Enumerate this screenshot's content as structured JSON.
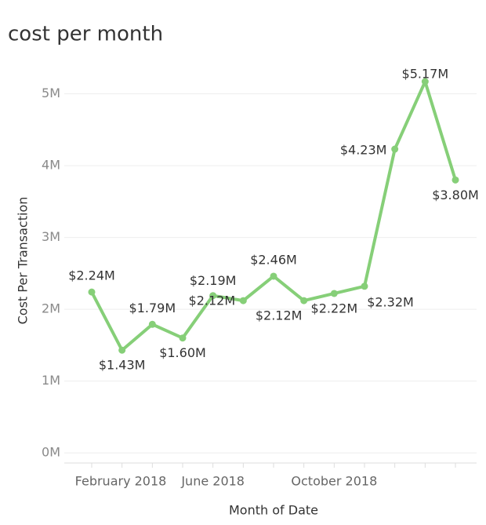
{
  "chart_data": {
    "type": "line",
    "title": "cost per month",
    "x_label": "Month of Date",
    "y_label": "Cost Per Transaction",
    "categories": [
      "February 2018",
      null,
      null,
      null,
      "June 2018",
      null,
      null,
      null,
      "October 2018",
      null,
      null,
      null,
      null
    ],
    "series": [
      {
        "name": "Cost Per Transaction",
        "color": "#86cf78",
        "values": [
          2240000,
          1430000,
          1790000,
          1600000,
          2190000,
          2120000,
          2460000,
          2120000,
          2220000,
          2320000,
          4230000,
          5170000,
          3800000
        ],
        "value_labels": [
          "$2.24M",
          "$1.43M",
          "$1.79M",
          "$1.60M",
          "$2.19M",
          "$2.12M",
          "$2.46M",
          "$2.12M",
          "$2.22M",
          "$2.32M",
          "$4.23M",
          "$5.17M",
          "$3.80M"
        ]
      }
    ],
    "ylim": [
      -130000,
      5170000
    ],
    "yticks": [
      {
        "value": 0,
        "label": "0M"
      },
      {
        "value": 1000000,
        "label": "1M"
      },
      {
        "value": 2000000,
        "label": "2M"
      },
      {
        "value": 3000000,
        "label": "3M"
      },
      {
        "value": 4000000,
        "label": "4M"
      },
      {
        "value": 5000000,
        "label": "5M"
      }
    ],
    "grid": true
  }
}
